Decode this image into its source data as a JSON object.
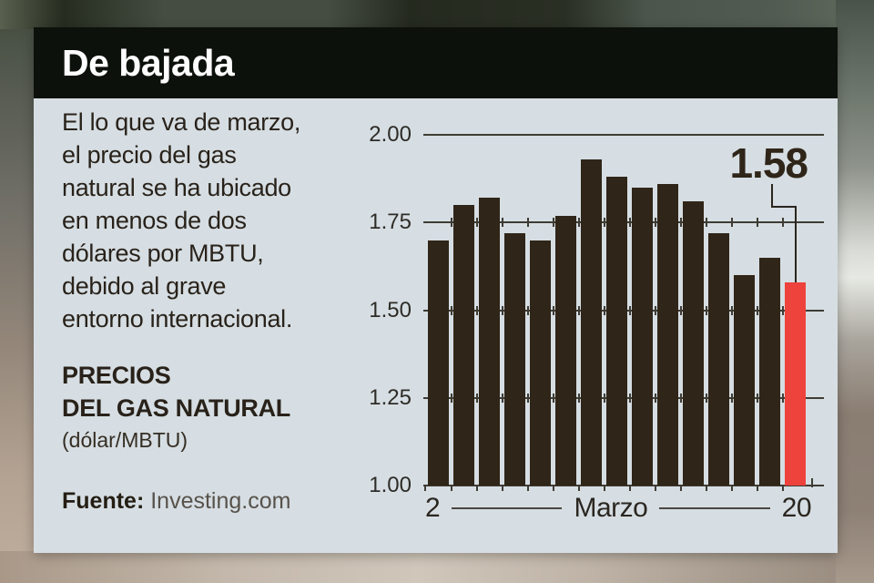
{
  "header": {
    "title": "De bajada"
  },
  "intro": {
    "text": "El lo que va de marzo,\nel precio del gas\nnatural se ha ubicado\nen menos de dos\ndólares por MBTU,\ndebido al grave\nentorno internacional."
  },
  "chart_label": {
    "title": "PRECIOS\nDEL GAS NATURAL",
    "unit": "(dólar/MBTU)"
  },
  "source": {
    "label": "Fuente:",
    "value": "Investing.com"
  },
  "chart_data": {
    "type": "bar",
    "title": "PRECIOS DEL GAS NATURAL (dólar/MBTU)",
    "xlabel": "Marzo",
    "ylabel": "dólar/MBTU",
    "x_axis": {
      "first": "2",
      "mid": "Marzo",
      "last": "20"
    },
    "y_ticks": [
      "2.00",
      "1.75",
      "1.50",
      "1.25",
      "1.00"
    ],
    "ylim": [
      1.0,
      2.0
    ],
    "grid": "on",
    "values": [
      1.7,
      1.8,
      1.82,
      1.72,
      1.7,
      1.77,
      1.93,
      1.88,
      1.85,
      1.86,
      1.81,
      1.72,
      1.6,
      1.65,
      1.58
    ],
    "highlight_index": 14,
    "highlight_label": "1.58",
    "colors": {
      "bar": "#2f2518",
      "highlight": "#ee423c",
      "grid": "#3f3c34",
      "panel": "#d6dee3",
      "header": "#0d110b"
    }
  }
}
